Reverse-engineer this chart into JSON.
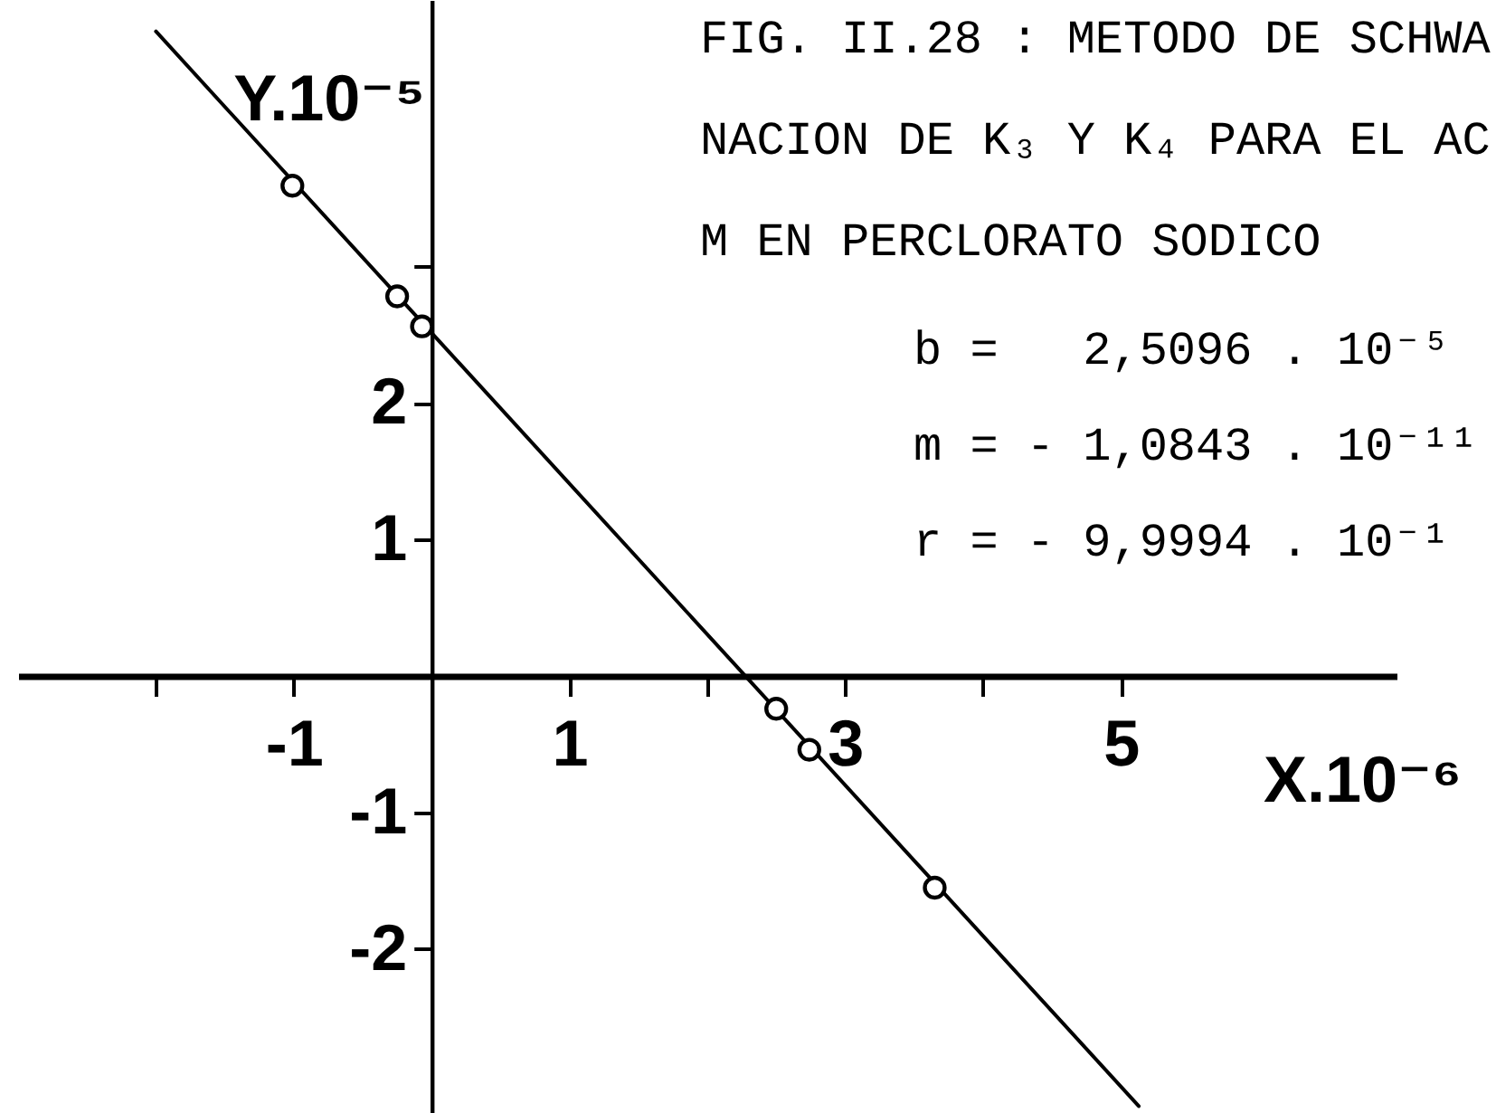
{
  "chart_data": {
    "type": "scatter",
    "title": "FIG. II.28 : METODO DE SCHWA\nNACION DE K₃ Y K₄ PARA EL AC\nM EN PERCLORATO SODICO",
    "xlabel": "X.10⁻⁶",
    "ylabel": "Y.10⁻⁵",
    "annotations": [
      "b =   2,5096 . 10⁻⁵",
      "m = - 1,0843 . 10⁻¹¹",
      "r = - 9,9994 . 10⁻¹"
    ],
    "series": [
      {
        "color": "#000000",
        "marker": "circle",
        "x": [
          -1.01,
          -0.25,
          -0.07,
          2.5,
          2.74,
          3.65
        ],
        "values": [
          3.59,
          2.78,
          2.56,
          -0.24,
          -0.54,
          -1.55
        ]
      },
      {
        "type": "line",
        "color": "#000000",
        "x": [
          -2.0,
          5.13
        ],
        "values": [
          4.72,
          -3.15
        ]
      }
    ],
    "xlim": [
      -3,
      7
    ],
    "ylim": [
      -3.2,
      4.95
    ],
    "xticks": [
      {
        "value": -2,
        "label": null
      },
      -1,
      1,
      {
        "value": 2,
        "label": null
      },
      3,
      {
        "value": 4,
        "label": null
      },
      5
    ],
    "yticks": [
      -2,
      -1,
      1,
      2,
      {
        "value": 3,
        "label": null
      }
    ]
  }
}
